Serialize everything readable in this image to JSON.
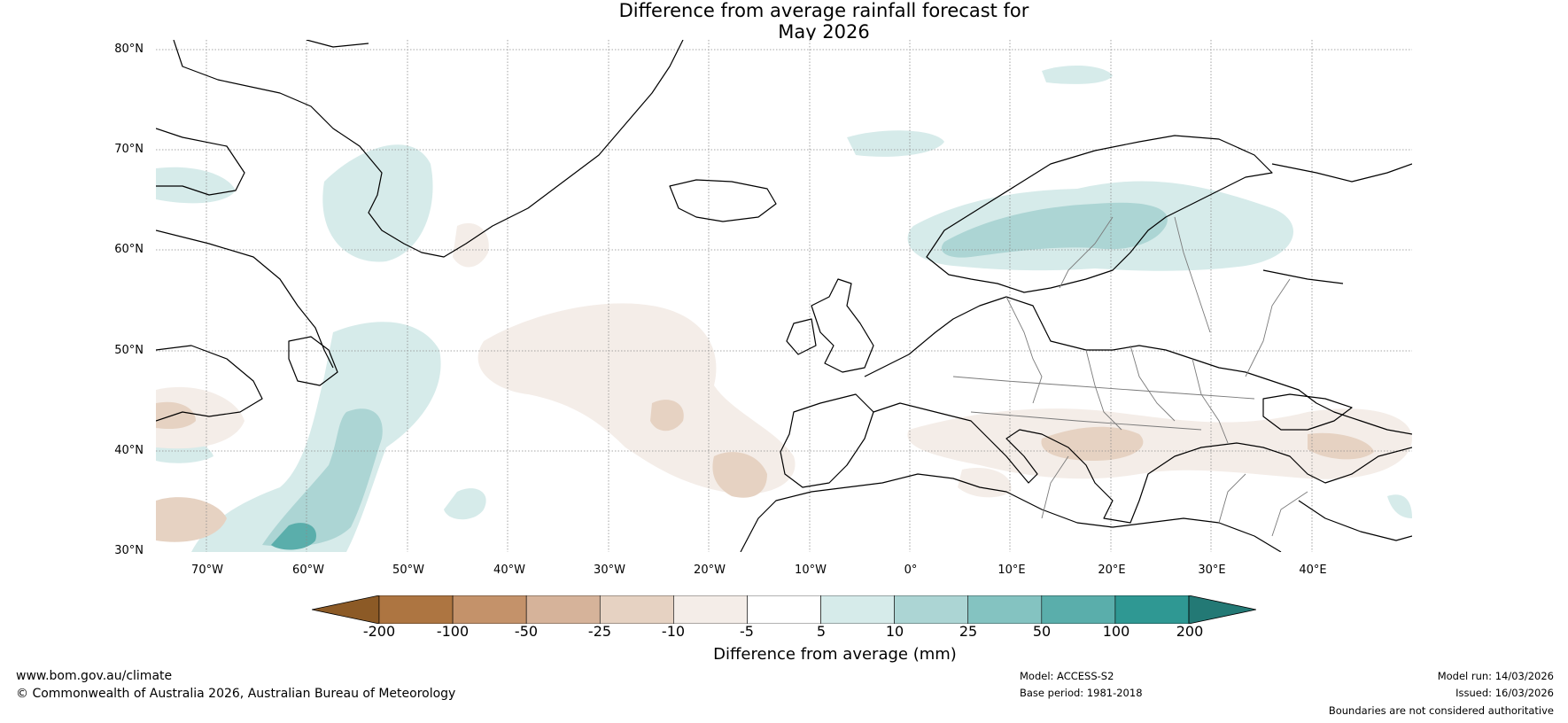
{
  "map": {
    "title_line1": "Difference from average rainfall forecast for",
    "title_line2": "May 2026",
    "lat_labels": [
      "80°N",
      "70°N",
      "60°N",
      "50°N",
      "40°N",
      "30°N"
    ],
    "lon_labels": [
      "70°W",
      "60°W",
      "50°W",
      "40°W",
      "30°W",
      "20°W",
      "10°W",
      "0°",
      "10°E",
      "20°E",
      "30°E",
      "40°E"
    ],
    "extent": {
      "lon_min": -75,
      "lon_max": 50,
      "lat_min": 30,
      "lat_max": 81
    },
    "colorbar": {
      "label": "Difference from average (mm)",
      "ticks": [
        "-200",
        "-100",
        "-50",
        "-25",
        "-10",
        "-5",
        "5",
        "10",
        "25",
        "50",
        "100",
        "200"
      ],
      "colors": [
        "#8c5a26",
        "#ad7541",
        "#c4926a",
        "#d6b39a",
        "#e6d2c2",
        "#f4ede8",
        "#ffffff",
        "#d6ebea",
        "#acd5d4",
        "#84c3c1",
        "#5aaeab",
        "#2f9893",
        "#237975"
      ]
    }
  },
  "footer": {
    "site": "www.bom.gov.au/climate",
    "copyright": "© Commonwealth of Australia 2026, Australian Bureau of Meteorology",
    "model": "Model: ACCESS-S2",
    "base_period": "Base period: 1981-2018",
    "model_run": "Model run: 14/03/2026",
    "issued": "Issued: 16/03/2026",
    "disclaimer": "Boundaries are not considered authoritative"
  }
}
